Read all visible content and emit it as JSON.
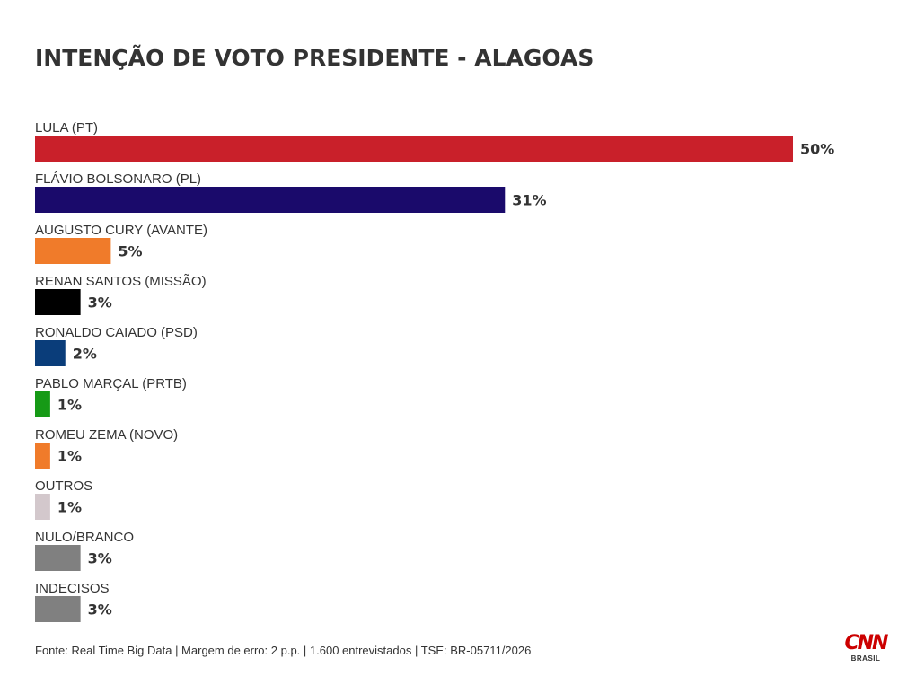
{
  "title": "INTENÇÃO DE VOTO PRESIDENTE - ALAGOAS",
  "footer": "Fonte: Real Time Big Data | Margem de erro: 2 p.p. | 1.600 entrevistados | TSE: BR-05711/2026",
  "logo": {
    "mark": "CNN",
    "sub": "BRASIL"
  },
  "chart_data": {
    "type": "bar",
    "orientation": "horizontal",
    "title": "INTENÇÃO DE VOTO PRESIDENTE - ALAGOAS",
    "xlim": [
      0,
      50
    ],
    "grid": false,
    "categories": [
      "LULA (PT)",
      "FLÁVIO BOLSONARO (PL)",
      "AUGUSTO CURY (AVANTE)",
      "RENAN SANTOS (MISSÃO)",
      "RONALDO CAIADO (PSD)",
      "PABLO MARÇAL (PRTB)",
      "ROMEU ZEMA (NOVO)",
      "OUTROS",
      "NULO/BRANCO",
      "INDECISOS"
    ],
    "values": [
      50,
      31,
      5,
      3,
      2,
      1,
      1,
      1,
      3,
      3
    ],
    "value_labels": [
      "50%",
      "31%",
      "5%",
      "3%",
      "2%",
      "1%",
      "1%",
      "1%",
      "3%",
      "3%"
    ],
    "colors": [
      "#c9202a",
      "#1a0a6b",
      "#f07b2a",
      "#000000",
      "#0a3d7a",
      "#169a16",
      "#f07b2a",
      "#d3c8cc",
      "#808080",
      "#808080"
    ]
  }
}
